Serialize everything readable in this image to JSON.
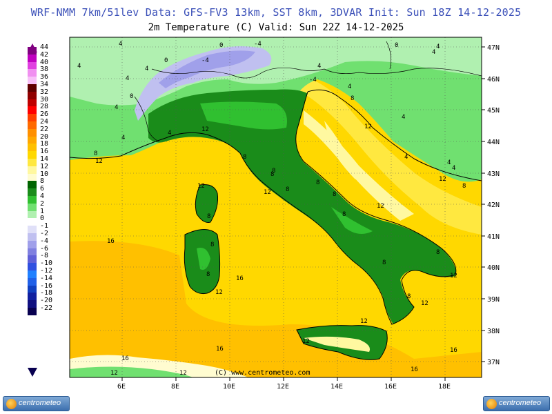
{
  "header": {
    "line1": "WRF-NMM 7km/51lev   Data: GFS-FV3 13km, SST 8km, 3DVAR   Init: Sun 18Z 14-12-2025",
    "line2": "2m Temperature (C)  Valid: Sun 22Z 14-12-2025"
  },
  "credit": "(C) www.centrometeo.com",
  "logo_text": "centrometeo",
  "lon_labels": [
    "6E",
    "8E",
    "10E",
    "12E",
    "14E",
    "16E",
    "18E"
  ],
  "lat_labels": [
    "47N",
    "46N",
    "45N",
    "44N",
    "43N",
    "42N",
    "41N",
    "40N",
    "39N",
    "38N",
    "37N"
  ],
  "legend": {
    "levels": [
      "44",
      "42",
      "40",
      "38",
      "36",
      "34",
      "32",
      "30",
      "28",
      "26",
      "24",
      "22",
      "20",
      "18",
      "16",
      "14",
      "12",
      "10",
      "8",
      "6",
      "4",
      "2",
      "1",
      "0",
      "-1",
      "-2",
      "-4",
      "-6",
      "-8",
      "-10",
      "-12",
      "-14",
      "-16",
      "-18",
      "-20",
      "-22"
    ],
    "colors": [
      "#800080",
      "#c000c0",
      "#e040e0",
      "#f090f0",
      "#f8c0f8",
      "#600000",
      "#900000",
      "#c00000",
      "#ff0000",
      "#ff4000",
      "#ff6a00",
      "#ff9000",
      "#ffa800",
      "#ffc000",
      "#ffd800",
      "#ffe840",
      "#fff8a0",
      "#fffcd0",
      "#006400",
      "#1a8c1a",
      "#30c030",
      "#70e070",
      "#b0f0b0",
      "#ffffff",
      "#e0e0f8",
      "#c0c0f0",
      "#a0a0ea",
      "#8080e0",
      "#6060d8",
      "#3050e0",
      "#2080ff",
      "#2060e8",
      "#1040c0",
      "#1020a0",
      "#101080",
      "#080050"
    ]
  },
  "contour_labels": [
    {
      "t": "4"
    },
    {
      "t": "-4"
    },
    {
      "t": "0"
    },
    {
      "t": "4"
    },
    {
      "t": "-4"
    },
    {
      "t": "0"
    },
    {
      "t": "4"
    },
    {
      "t": "4"
    },
    {
      "t": "0"
    },
    {
      "t": "4"
    },
    {
      "t": "4"
    },
    {
      "t": "4"
    },
    {
      "t": "8"
    },
    {
      "t": "12"
    },
    {
      "t": "4"
    },
    {
      "t": "4"
    },
    {
      "t": "4"
    },
    {
      "t": "8"
    },
    {
      "t": "12"
    },
    {
      "t": "12"
    },
    {
      "t": "8"
    },
    {
      "t": "8"
    },
    {
      "t": "8"
    },
    {
      "t": "8"
    },
    {
      "t": "8"
    },
    {
      "t": "12"
    },
    {
      "t": "8"
    },
    {
      "t": "12"
    },
    {
      "t": "8"
    },
    {
      "t": "12"
    },
    {
      "t": "8"
    },
    {
      "t": "8"
    },
    {
      "t": "8"
    },
    {
      "t": "16"
    },
    {
      "t": "16"
    },
    {
      "t": "12"
    },
    {
      "t": "8"
    },
    {
      "t": "12"
    },
    {
      "t": "12"
    },
    {
      "t": "16"
    },
    {
      "t": "16"
    },
    {
      "t": "16"
    },
    {
      "t": "16"
    },
    {
      "t": "12"
    },
    {
      "t": "12"
    },
    {
      "t": "4"
    },
    {
      "t": "8"
    },
    {
      "t": "12"
    },
    {
      "t": "12"
    },
    {
      "t": "12"
    },
    {
      "t": "8"
    },
    {
      "t": "4"
    },
    {
      "t": "4"
    },
    {
      "t": "4"
    },
    {
      "t": "8"
    },
    {
      "t": "0"
    },
    {
      "t": "-4"
    },
    {
      "t": "4"
    }
  ]
}
